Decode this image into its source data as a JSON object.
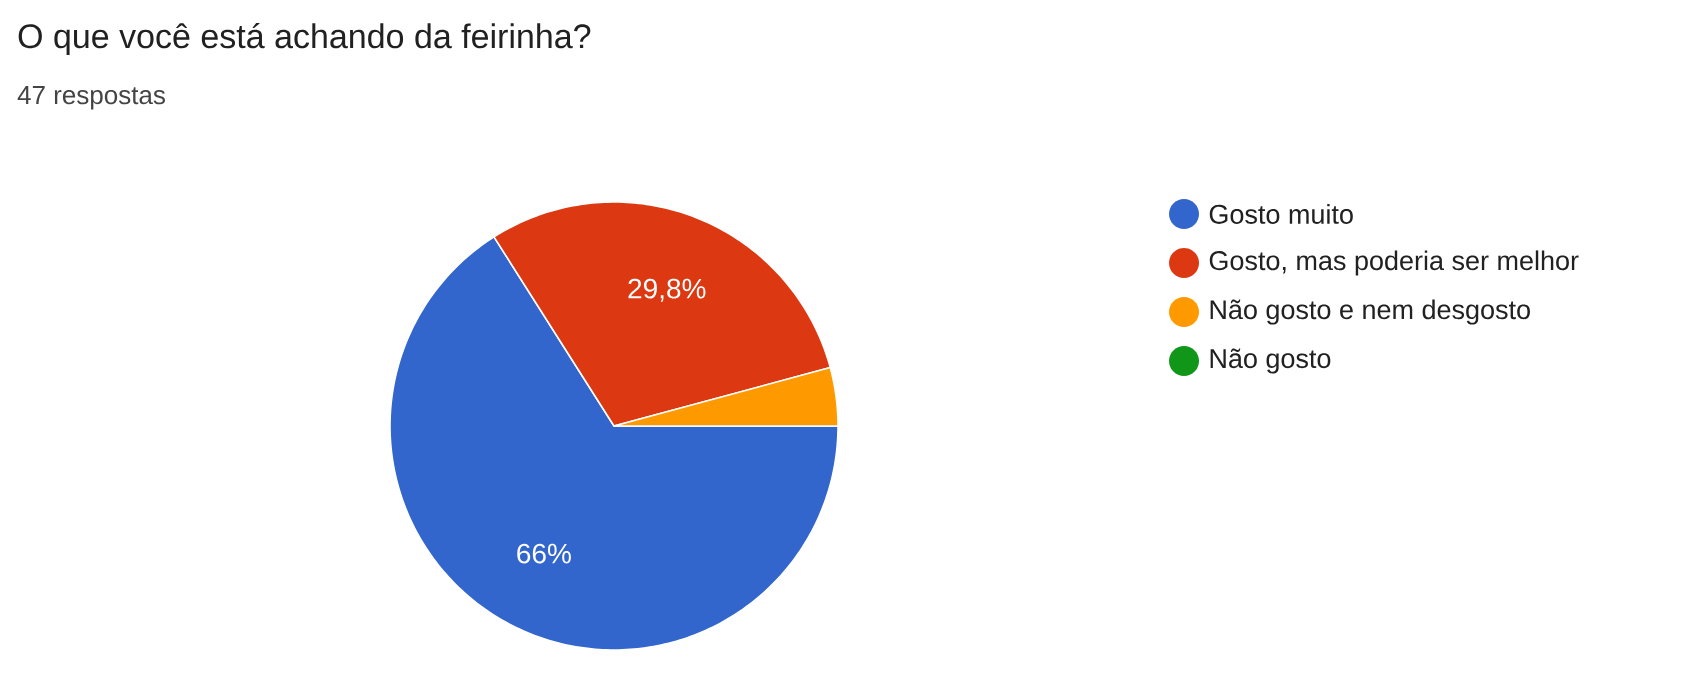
{
  "chart_data": {
    "type": "pie",
    "title": "O que você está achando da feirinha?",
    "subtitle": "47 respostas",
    "categories": [
      "Gosto muito",
      "Gosto, mas poderia ser melhor",
      "Não gosto e nem desgosto",
      "Não gosto"
    ],
    "values": [
      66,
      29.8,
      4.2,
      0
    ],
    "colors": [
      "#3366cc",
      "#dc3912",
      "#ff9900",
      "#109618"
    ],
    "value_labels": [
      "66%",
      "29,8%",
      null,
      null
    ],
    "legend": "right"
  }
}
